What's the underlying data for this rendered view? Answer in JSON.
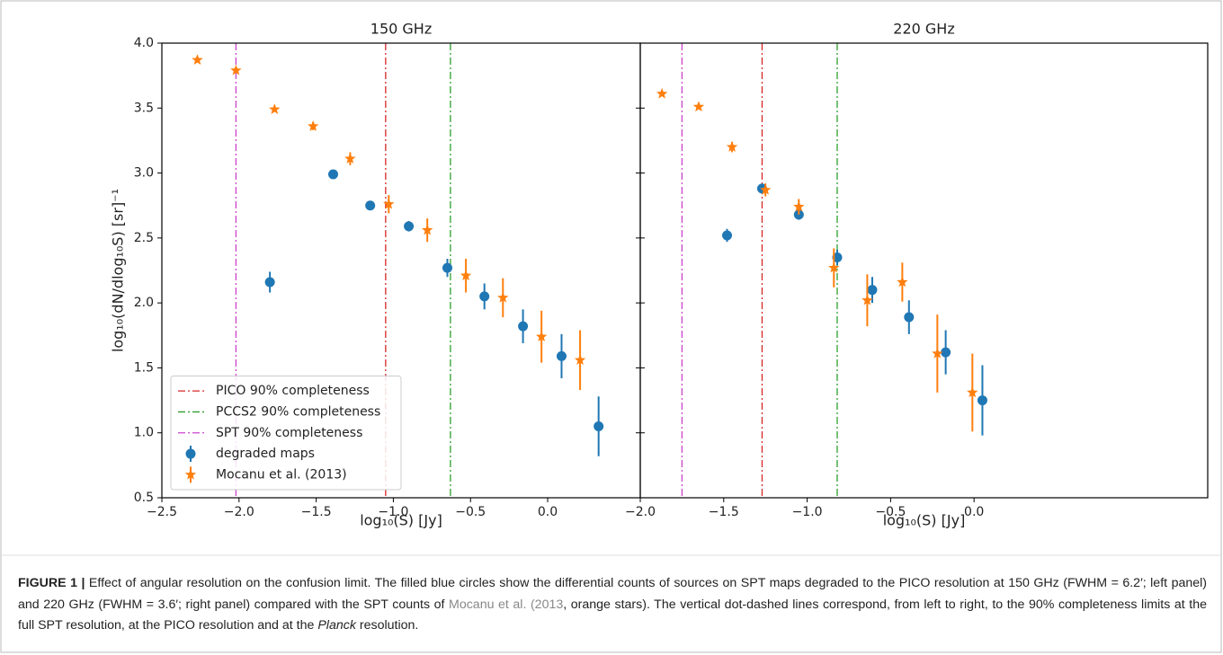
{
  "chart_data": [
    {
      "type": "errorbar",
      "title": "150 GHz",
      "x_label": "log₁₀(S) [Jy]",
      "y_label": "log₁₀(dN/dlog₁₀S) [sr]⁻¹",
      "xlim": [
        -2.5,
        0.6
      ],
      "ylim": [
        0.5,
        4.0
      ],
      "xticks": [
        {
          "value": -2.5,
          "label": "−2.5"
        },
        {
          "value": -2.0,
          "label": "−2.0"
        },
        {
          "value": -1.5,
          "label": "−1.5"
        },
        {
          "value": -1.0,
          "label": "−1.0"
        },
        {
          "value": -0.5,
          "label": "−0.5"
        },
        {
          "value": 0.0,
          "label": "0.0"
        }
      ],
      "yticks": [
        {
          "value": 0.5,
          "label": "0.5"
        },
        {
          "value": 1.0,
          "label": "1.0"
        },
        {
          "value": 1.5,
          "label": "1.5"
        },
        {
          "value": 2.0,
          "label": "2.0"
        },
        {
          "value": 2.5,
          "label": "2.5"
        },
        {
          "value": 3.0,
          "label": "3.0"
        },
        {
          "value": 3.5,
          "label": "3.5"
        },
        {
          "value": 4.0,
          "label": "4.0"
        }
      ],
      "legend": "lower left",
      "vlines": [
        {
          "name": "PICO 90% completeness",
          "color": "#d62728",
          "x": -1.05
        },
        {
          "name": "PCCS2 90% completeness",
          "color": "#2ca02c",
          "x": -0.63
        },
        {
          "name": "SPT 90% completeness",
          "color": "#cc44cc",
          "x": -2.02
        }
      ],
      "series": [
        {
          "name": "degraded maps",
          "color": "#1f77b4",
          "marker": "circle",
          "x": [
            -1.8,
            -1.39,
            -1.15,
            -0.9,
            -0.65,
            -0.41,
            -0.16,
            0.09,
            0.33
          ],
          "values": [
            2.16,
            2.99,
            2.75,
            2.59,
            2.27,
            2.05,
            1.82,
            1.59,
            1.05
          ],
          "errors": [
            0.08,
            0.02,
            0.03,
            0.04,
            0.07,
            0.1,
            0.13,
            0.17,
            0.23
          ]
        },
        {
          "name": "Mocanu et al. (2013)",
          "color": "#ff7f0e",
          "marker": "star",
          "x": [
            -2.27,
            -2.02,
            -1.77,
            -1.52,
            -1.28,
            -1.03,
            -0.78,
            -0.53,
            -0.29,
            -0.04,
            0.21
          ],
          "values": [
            3.87,
            3.79,
            3.49,
            3.36,
            3.11,
            2.76,
            2.56,
            2.21,
            2.04,
            1.74,
            1.56
          ],
          "errors": [
            0.01,
            0.02,
            0.02,
            0.03,
            0.05,
            0.07,
            0.09,
            0.13,
            0.15,
            0.2,
            0.23
          ]
        }
      ]
    },
    {
      "type": "errorbar",
      "title": "220 GHz",
      "x_label": "log₁₀(S) [Jy]",
      "xlim": [
        -2.0,
        1.4
      ],
      "ylim": [
        0.5,
        4.0
      ],
      "xticks": [
        {
          "value": -2.0,
          "label": "−2.0"
        },
        {
          "value": -1.5,
          "label": "−1.5"
        },
        {
          "value": -1.0,
          "label": "−1.0"
        },
        {
          "value": -0.5,
          "label": "−0.5"
        },
        {
          "value": 0.0,
          "label": "0.0"
        }
      ],
      "vlines": [
        {
          "color": "#d62728",
          "x": -1.27
        },
        {
          "color": "#2ca02c",
          "x": -0.82
        },
        {
          "color": "#cc44cc",
          "x": -1.75
        }
      ],
      "series": [
        {
          "color": "#1f77b4",
          "marker": "circle",
          "x": [
            -1.48,
            -1.27,
            -1.05,
            -0.82,
            -0.61,
            -0.39,
            -0.17,
            0.05
          ],
          "values": [
            2.52,
            2.88,
            2.68,
            2.35,
            2.1,
            1.89,
            1.62,
            1.25
          ],
          "errors": [
            0.05,
            0.03,
            0.04,
            0.06,
            0.1,
            0.13,
            0.17,
            0.27
          ]
        },
        {
          "color": "#ff7f0e",
          "marker": "star",
          "x": [
            -1.87,
            -1.65,
            -1.45,
            -1.25,
            -1.05,
            -0.84,
            -0.64,
            -0.43,
            -0.22,
            -0.01
          ],
          "values": [
            3.61,
            3.51,
            3.2,
            2.87,
            2.74,
            2.27,
            2.02,
            2.16,
            1.61,
            1.31
          ],
          "errors": [
            0.01,
            0.01,
            0.04,
            0.05,
            0.06,
            0.15,
            0.2,
            0.15,
            0.3,
            0.3
          ]
        }
      ]
    }
  ],
  "caption": [
    "FIGURE 1 |",
    " Effect of angular resolution on the confusion limit. The filled blue circles show the differential counts of sources on SPT maps degraded to the PICO resolution at 150 GHz (FWHM = 6.2′; left panel) and 220 GHz (FWHM = 3.6′; right panel) compared with the SPT counts of ",
    "Mocanu et al. (2013",
    ", orange stars). The vertical dot-dashed lines correspond, from left to right, to the 90% completeness limits at the full SPT resolution, at the PICO resolution and at the ",
    "Planck",
    " resolution."
  ]
}
